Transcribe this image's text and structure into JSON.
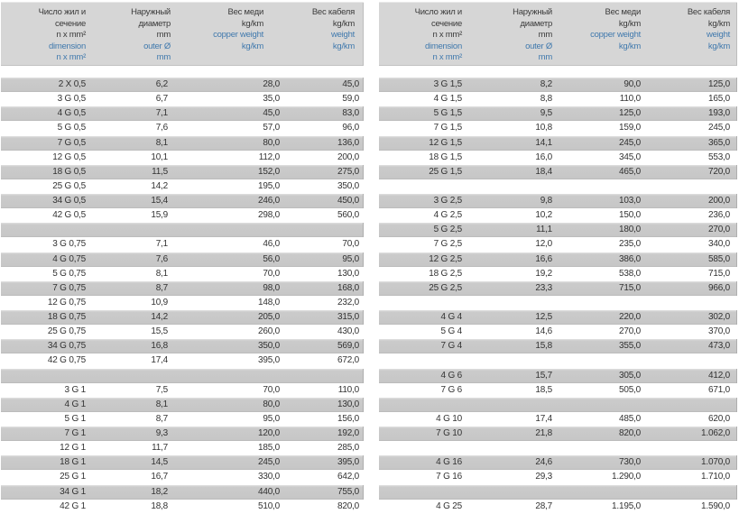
{
  "colors": {
    "page_background": "#ffffff",
    "header_background": "#d6d6d6",
    "row_shade": "#c7c7c7",
    "text_primary": "#333333",
    "text_blue": "#4079ad"
  },
  "header": {
    "columns": [
      {
        "black": [
          "Число жил и",
          "сечение",
          "n x mm²"
        ],
        "blue": [
          "dimension",
          "n x mm²"
        ]
      },
      {
        "black": [
          "Наружный",
          "диаметр",
          "mm"
        ],
        "blue": [
          "outer Ø",
          "mm"
        ]
      },
      {
        "black": [
          "Вес меди",
          "kg/km"
        ],
        "blue": [
          "copper weight",
          "kg/km"
        ]
      },
      {
        "black": [
          "Вес кабеля",
          "kg/km"
        ],
        "blue": [
          "weight",
          "kg/km"
        ]
      }
    ]
  },
  "tables": [
    {
      "name": "cable-table-left",
      "rows": [
        [
          "2 X 0,5",
          "6,2",
          "28,0",
          "45,0"
        ],
        [
          "3 G 0,5",
          "6,7",
          "35,0",
          "59,0"
        ],
        [
          "4 G 0,5",
          "7,1",
          "45,0",
          "83,0"
        ],
        [
          "5 G 0,5",
          "7,6",
          "57,0",
          "96,0"
        ],
        [
          "7 G 0,5",
          "8,1",
          "80,0",
          "136,0"
        ],
        [
          "12 G 0,5",
          "10,1",
          "112,0",
          "200,0"
        ],
        [
          "18 G 0,5",
          "11,5",
          "152,0",
          "275,0"
        ],
        [
          "25 G 0,5",
          "14,2",
          "195,0",
          "350,0"
        ],
        [
          "34 G 0,5",
          "15,4",
          "246,0",
          "450,0"
        ],
        [
          "42 G 0,5",
          "15,9",
          "298,0",
          "560,0"
        ],
        null,
        [
          "3 G 0,75",
          "7,1",
          "46,0",
          "70,0"
        ],
        [
          "4 G 0,75",
          "7,6",
          "56,0",
          "95,0"
        ],
        [
          "5 G 0,75",
          "8,1",
          "70,0",
          "130,0"
        ],
        [
          "7 G 0,75",
          "8,7",
          "98,0",
          "168,0"
        ],
        [
          "12 G 0,75",
          "10,9",
          "148,0",
          "232,0"
        ],
        [
          "18 G 0,75",
          "14,2",
          "205,0",
          "315,0"
        ],
        [
          "25 G 0,75",
          "15,5",
          "260,0",
          "430,0"
        ],
        [
          "34 G 0,75",
          "16,8",
          "350,0",
          "569,0"
        ],
        [
          "42 G 0,75",
          "17,4",
          "395,0",
          "672,0"
        ],
        null,
        [
          "3 G 1",
          "7,5",
          "70,0",
          "110,0"
        ],
        [
          "4 G 1",
          "8,1",
          "80,0",
          "130,0"
        ],
        [
          "5 G 1",
          "8,7",
          "95,0",
          "156,0"
        ],
        [
          "7 G 1",
          "9,3",
          "120,0",
          "192,0"
        ],
        [
          "12 G 1",
          "11,7",
          "185,0",
          "285,0"
        ],
        [
          "18 G 1",
          "14,5",
          "245,0",
          "395,0"
        ],
        [
          "25 G 1",
          "16,7",
          "330,0",
          "642,0"
        ],
        [
          "34 G 1",
          "18,2",
          "440,0",
          "755,0"
        ],
        [
          "42 G 1",
          "18,8",
          "510,0",
          "820,0"
        ]
      ]
    },
    {
      "name": "cable-table-right",
      "rows": [
        [
          "3 G 1,5",
          "8,2",
          "90,0",
          "125,0"
        ],
        [
          "4 G 1,5",
          "8,8",
          "110,0",
          "165,0"
        ],
        [
          "5 G 1,5",
          "9,5",
          "125,0",
          "193,0"
        ],
        [
          "7 G 1,5",
          "10,8",
          "159,0",
          "245,0"
        ],
        [
          "12 G 1,5",
          "14,1",
          "245,0",
          "365,0"
        ],
        [
          "18 G 1,5",
          "16,0",
          "345,0",
          "553,0"
        ],
        [
          "25 G 1,5",
          "18,4",
          "465,0",
          "720,0"
        ],
        null,
        [
          "3 G 2,5",
          "9,8",
          "103,0",
          "200,0"
        ],
        [
          "4 G 2,5",
          "10,2",
          "150,0",
          "236,0"
        ],
        [
          "5 G 2,5",
          "11,1",
          "180,0",
          "270,0"
        ],
        [
          "7 G 2,5",
          "12,0",
          "235,0",
          "340,0"
        ],
        [
          "12 G 2,5",
          "16,6",
          "386,0",
          "585,0"
        ],
        [
          "18 G 2,5",
          "19,2",
          "538,0",
          "715,0"
        ],
        [
          "25 G 2,5",
          "23,3",
          "715,0",
          "966,0"
        ],
        null,
        [
          "4 G 4",
          "12,5",
          "220,0",
          "302,0"
        ],
        [
          "5 G 4",
          "14,6",
          "270,0",
          "370,0"
        ],
        [
          "7 G 4",
          "15,8",
          "355,0",
          "473,0"
        ],
        null,
        [
          "4 G 6",
          "15,7",
          "305,0",
          "412,0"
        ],
        [
          "7 G 6",
          "18,5",
          "505,0",
          "671,0"
        ],
        null,
        [
          "4 G 10",
          "17,4",
          "485,0",
          "620,0"
        ],
        [
          "7 G 10",
          "21,8",
          "820,0",
          "1.062,0"
        ],
        null,
        [
          "4 G 16",
          "24,6",
          "730,0",
          "1.070,0"
        ],
        [
          "7 G 16",
          "29,3",
          "1.290,0",
          "1.710,0"
        ],
        null,
        [
          "4 G 25",
          "28,7",
          "1.195,0",
          "1.590,0"
        ]
      ]
    }
  ]
}
